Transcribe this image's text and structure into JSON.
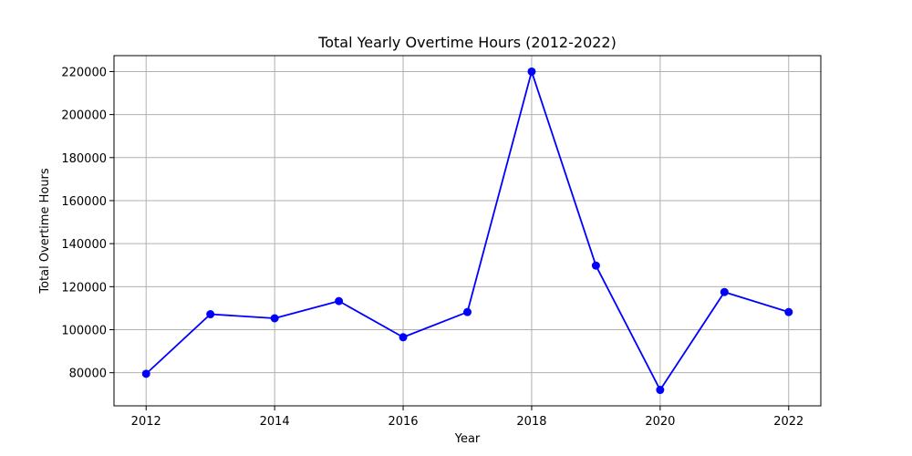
{
  "chart_data": {
    "type": "line",
    "title": "Total Yearly Overtime Hours (2012-2022)",
    "xlabel": "Year",
    "ylabel": "Total Overtime Hours",
    "x": [
      2012,
      2013,
      2014,
      2015,
      2016,
      2017,
      2018,
      2019,
      2020,
      2021,
      2022
    ],
    "series": [
      {
        "values": [
          79500,
          107200,
          105300,
          113300,
          96500,
          108200,
          220000,
          129800,
          72000,
          117500,
          108200
        ],
        "color": "#0000ff",
        "marker": "circle"
      }
    ],
    "xticks": [
      2012,
      2014,
      2016,
      2018,
      2020,
      2022
    ],
    "xtick_labels": [
      "2012",
      "2014",
      "2016",
      "2018",
      "2020",
      "2022"
    ],
    "yticks": [
      80000,
      100000,
      120000,
      140000,
      160000,
      180000,
      200000,
      220000
    ],
    "ytick_labels": [
      "80000",
      "100000",
      "120000",
      "140000",
      "160000",
      "180000",
      "200000",
      "220000"
    ],
    "xlim": [
      2011.5,
      2022.5
    ],
    "ylim": [
      64600,
      227400
    ],
    "grid": true,
    "grid_color": "#b0b0b0"
  }
}
